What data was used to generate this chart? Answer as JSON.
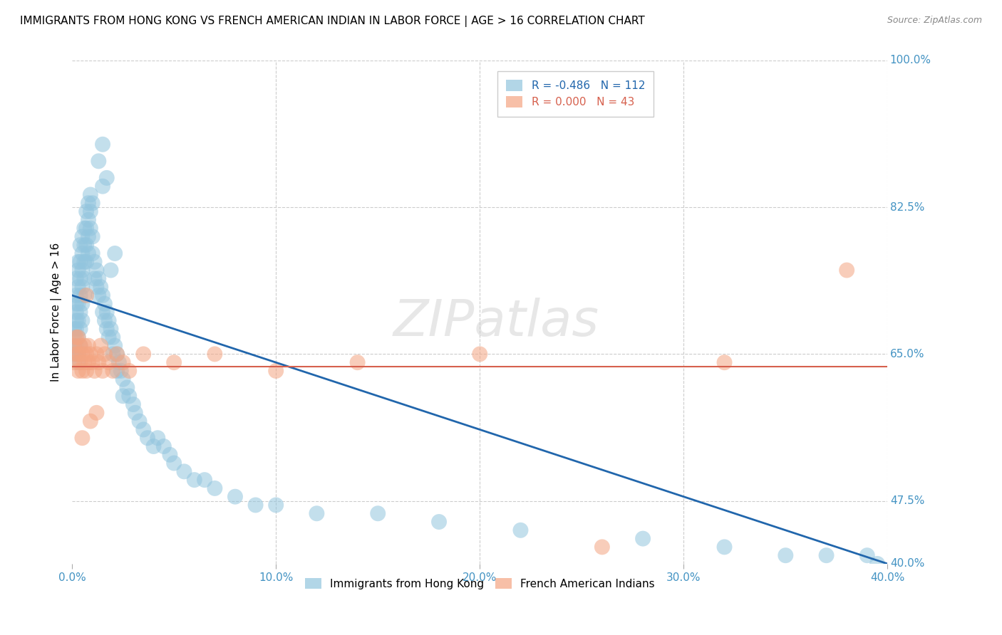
{
  "title": "IMMIGRANTS FROM HONG KONG VS FRENCH AMERICAN INDIAN IN LABOR FORCE | AGE > 16 CORRELATION CHART",
  "source": "Source: ZipAtlas.com",
  "ylabel": "In Labor Force | Age > 16",
  "blue_label": "Immigrants from Hong Kong",
  "pink_label": "French American Indians",
  "blue_R": -0.486,
  "blue_N": 112,
  "pink_R": 0.0,
  "pink_N": 43,
  "xlim": [
    0.0,
    0.4
  ],
  "ylim": [
    0.4,
    1.0
  ],
  "xticks": [
    0.0,
    0.1,
    0.2,
    0.3,
    0.4
  ],
  "xtick_labels": [
    "0.0%",
    "10.0%",
    "20.0%",
    "30.0%",
    "40.0%"
  ],
  "right_yticks": [
    [
      1.0,
      "100.0%"
    ],
    [
      0.825,
      "82.5%"
    ],
    [
      0.65,
      "65.0%"
    ],
    [
      0.475,
      "47.5%"
    ],
    [
      0.4,
      "40.0%"
    ]
  ],
  "hgrid_lines": [
    1.0,
    0.825,
    0.65,
    0.475
  ],
  "vgrid_lines": [
    0.1,
    0.2,
    0.3,
    0.4
  ],
  "blue_color": "#92c5de",
  "pink_color": "#f4a582",
  "blue_line_color": "#2166ac",
  "pink_line_color": "#d6604d",
  "axis_label_color": "#4393c3",
  "blue_trend_x": [
    0.0,
    0.4
  ],
  "blue_trend_y": [
    0.72,
    0.4
  ],
  "pink_trend_y": 0.635,
  "blue_scatter_x": [
    0.001,
    0.001,
    0.001,
    0.001,
    0.002,
    0.002,
    0.002,
    0.002,
    0.002,
    0.002,
    0.002,
    0.002,
    0.003,
    0.003,
    0.003,
    0.003,
    0.003,
    0.003,
    0.003,
    0.003,
    0.004,
    0.004,
    0.004,
    0.004,
    0.004,
    0.004,
    0.004,
    0.005,
    0.005,
    0.005,
    0.005,
    0.005,
    0.005,
    0.006,
    0.006,
    0.006,
    0.006,
    0.006,
    0.007,
    0.007,
    0.007,
    0.007,
    0.008,
    0.008,
    0.008,
    0.008,
    0.009,
    0.009,
    0.009,
    0.01,
    0.01,
    0.01,
    0.011,
    0.011,
    0.012,
    0.012,
    0.013,
    0.013,
    0.014,
    0.015,
    0.015,
    0.016,
    0.016,
    0.017,
    0.017,
    0.018,
    0.018,
    0.019,
    0.02,
    0.02,
    0.021,
    0.022,
    0.022,
    0.023,
    0.024,
    0.025,
    0.025,
    0.027,
    0.028,
    0.03,
    0.031,
    0.033,
    0.035,
    0.037,
    0.04,
    0.042,
    0.045,
    0.048,
    0.05,
    0.055,
    0.06,
    0.065,
    0.07,
    0.08,
    0.09,
    0.1,
    0.12,
    0.15,
    0.18,
    0.22,
    0.28,
    0.32,
    0.35,
    0.37,
    0.39,
    0.395,
    0.015,
    0.017,
    0.019,
    0.021,
    0.013,
    0.015
  ],
  "blue_scatter_y": [
    0.66,
    0.67,
    0.68,
    0.65,
    0.72,
    0.7,
    0.68,
    0.66,
    0.74,
    0.71,
    0.69,
    0.65,
    0.75,
    0.73,
    0.71,
    0.69,
    0.67,
    0.65,
    0.76,
    0.64,
    0.78,
    0.76,
    0.74,
    0.72,
    0.7,
    0.68,
    0.66,
    0.79,
    0.77,
    0.75,
    0.73,
    0.71,
    0.69,
    0.8,
    0.78,
    0.76,
    0.74,
    0.72,
    0.82,
    0.8,
    0.78,
    0.76,
    0.83,
    0.81,
    0.79,
    0.77,
    0.84,
    0.82,
    0.8,
    0.83,
    0.79,
    0.77,
    0.76,
    0.74,
    0.75,
    0.73,
    0.74,
    0.72,
    0.73,
    0.72,
    0.7,
    0.71,
    0.69,
    0.7,
    0.68,
    0.69,
    0.67,
    0.68,
    0.67,
    0.65,
    0.66,
    0.65,
    0.63,
    0.64,
    0.63,
    0.62,
    0.6,
    0.61,
    0.6,
    0.59,
    0.58,
    0.57,
    0.56,
    0.55,
    0.54,
    0.55,
    0.54,
    0.53,
    0.52,
    0.51,
    0.5,
    0.5,
    0.49,
    0.48,
    0.47,
    0.47,
    0.46,
    0.46,
    0.45,
    0.44,
    0.43,
    0.42,
    0.41,
    0.41,
    0.41,
    0.4,
    0.85,
    0.86,
    0.75,
    0.77,
    0.88,
    0.9
  ],
  "pink_scatter_x": [
    0.001,
    0.001,
    0.002,
    0.002,
    0.003,
    0.003,
    0.003,
    0.004,
    0.004,
    0.005,
    0.005,
    0.006,
    0.006,
    0.007,
    0.007,
    0.008,
    0.008,
    0.009,
    0.01,
    0.011,
    0.012,
    0.013,
    0.014,
    0.015,
    0.016,
    0.018,
    0.02,
    0.022,
    0.025,
    0.028,
    0.035,
    0.05,
    0.07,
    0.1,
    0.14,
    0.2,
    0.26,
    0.32,
    0.38,
    0.005,
    0.007,
    0.009,
    0.012
  ],
  "pink_scatter_y": [
    0.64,
    0.66,
    0.65,
    0.67,
    0.63,
    0.65,
    0.67,
    0.64,
    0.66,
    0.63,
    0.65,
    0.64,
    0.66,
    0.63,
    0.65,
    0.64,
    0.66,
    0.65,
    0.64,
    0.63,
    0.65,
    0.64,
    0.66,
    0.63,
    0.65,
    0.64,
    0.63,
    0.65,
    0.64,
    0.63,
    0.65,
    0.64,
    0.65,
    0.63,
    0.64,
    0.65,
    0.42,
    0.64,
    0.75,
    0.55,
    0.72,
    0.57,
    0.58
  ],
  "title_fontsize": 11,
  "legend_fontsize": 11,
  "tick_fontsize": 11,
  "ylabel_fontsize": 11
}
